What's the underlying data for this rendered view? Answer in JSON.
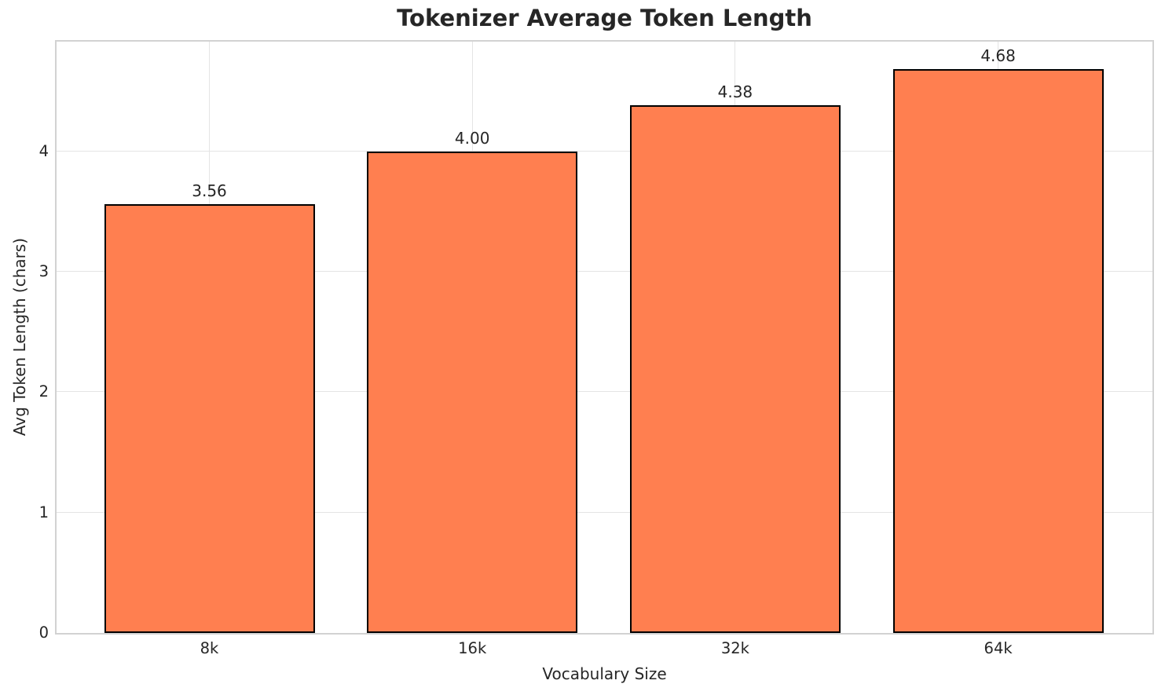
{
  "chart_data": {
    "type": "bar",
    "title": "Tokenizer Average Token Length",
    "xlabel": "Vocabulary Size",
    "ylabel": "Avg Token Length (chars)",
    "categories": [
      "8k",
      "16k",
      "32k",
      "64k"
    ],
    "values": [
      3.56,
      4.0,
      4.38,
      4.68
    ],
    "value_labels": [
      "3.56",
      "4.00",
      "4.38",
      "4.68"
    ],
    "yticks": [
      0,
      1,
      2,
      3,
      4
    ],
    "ylim": [
      0,
      4.91
    ],
    "grid": "on",
    "legend": "none",
    "bar_color": "#FF7F50",
    "bar_edge_color": "#000000",
    "grid_color": "#e4e4e4",
    "spine_color": "#d2d2d2",
    "text_color": "#262626",
    "background_color": "#ffffff"
  }
}
